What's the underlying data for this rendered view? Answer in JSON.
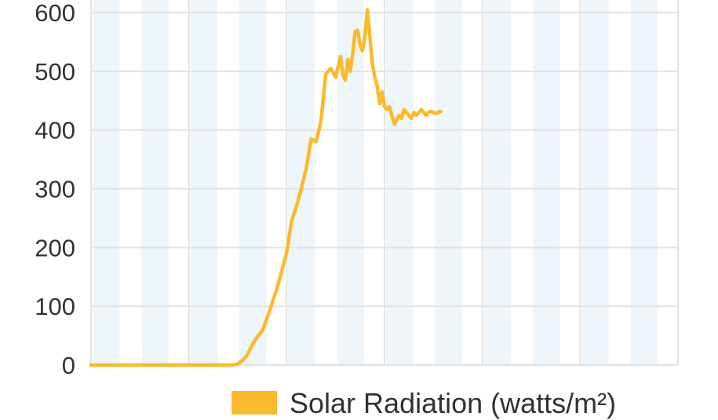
{
  "chart_data": {
    "type": "line",
    "title": "",
    "xlabel": "",
    "ylabel": "",
    "ylim": [
      0,
      600
    ],
    "yticks": [
      "0",
      "100",
      "200",
      "300",
      "400",
      "500",
      "600"
    ],
    "grid": true,
    "legend_position": "bottom-right",
    "colors": {
      "line": "#FBBA2B",
      "band": "#EEF5FB",
      "grid": "#E3E3E3"
    },
    "x_bands": 12,
    "x_major_divisions": 6,
    "x_extent": 120,
    "series": [
      {
        "name": "Solar Radiation (watts/m²)",
        "x": [
          0,
          10,
          20,
          29,
          30,
          31,
          32,
          33,
          34,
          35,
          36,
          37,
          38,
          39,
          40,
          41,
          42,
          43,
          44,
          45,
          46,
          47,
          48,
          49,
          50,
          51,
          51.5,
          52,
          52.5,
          53,
          53.5,
          54,
          54.5,
          55,
          55.5,
          56,
          56.5,
          57,
          57.5,
          58,
          58.5,
          59,
          59.5,
          60,
          60.5,
          61,
          61.5,
          62,
          62.5,
          63,
          63.5,
          64,
          64.5,
          65,
          65.5,
          66,
          66.5,
          67,
          67.5,
          68,
          68.5,
          69,
          69.5,
          70,
          70.5,
          71,
          71.5
        ],
        "y": [
          0,
          0,
          0,
          0,
          2,
          8,
          18,
          35,
          48,
          58,
          80,
          105,
          130,
          160,
          192,
          245,
          270,
          300,
          335,
          385,
          380,
          415,
          495,
          505,
          490,
          525,
          495,
          485,
          520,
          500,
          530,
          568,
          570,
          545,
          535,
          560,
          605,
          560,
          515,
          490,
          475,
          445,
          465,
          440,
          435,
          440,
          425,
          410,
          418,
          425,
          420,
          435,
          430,
          425,
          420,
          430,
          425,
          430,
          435,
          430,
          425,
          430,
          432,
          430,
          428,
          430,
          432
        ]
      }
    ]
  }
}
